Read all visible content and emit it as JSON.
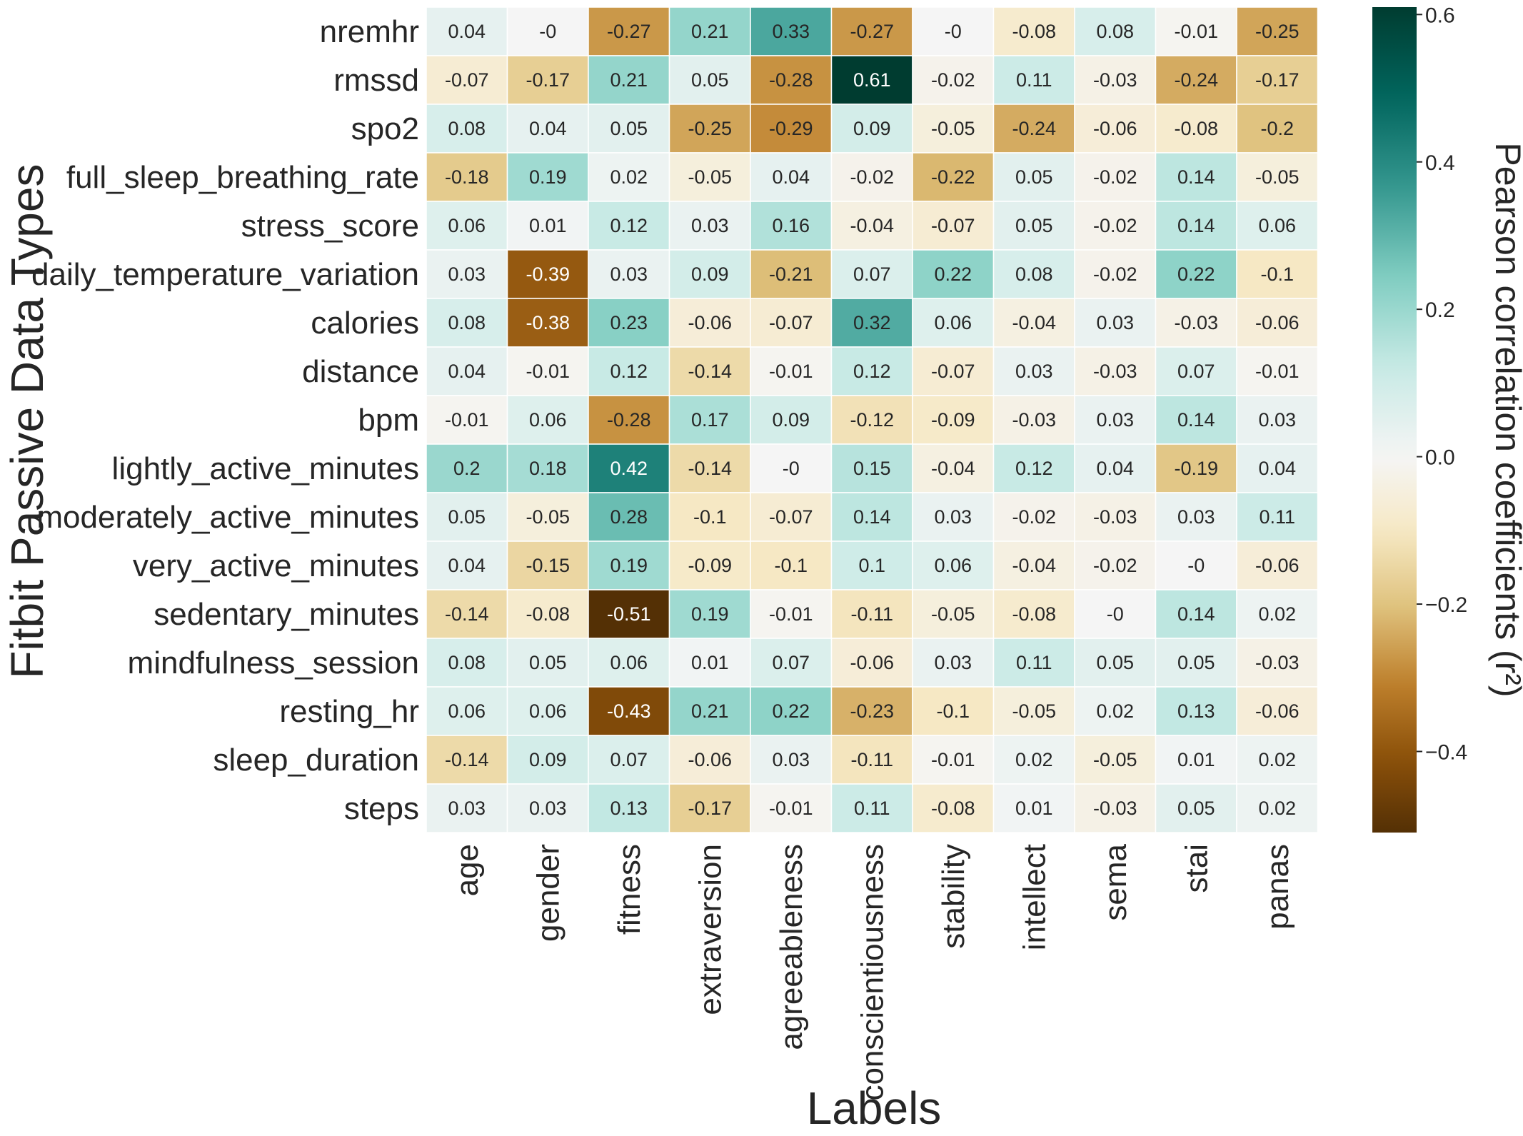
{
  "chart_data": {
    "type": "heatmap",
    "title": "",
    "xlabel": "Labels",
    "ylabel": "Fitbit Passive Data Types",
    "colorbar_label": "Pearson correlation coefficients (r²)",
    "colorbar_ticks": [
      "0.6",
      "0.4",
      "0.2",
      "0.0",
      "−0.2",
      "−0.4"
    ],
    "colorbar_tick_values": [
      0.6,
      0.4,
      0.2,
      0.0,
      -0.2,
      -0.4
    ],
    "vmin": -0.51,
    "vmax": 0.61,
    "colormap": "BrBG",
    "colormap_stops": [
      "#543005",
      "#8c510a",
      "#bf812d",
      "#dfc27d",
      "#f6e8c3",
      "#f5f5f5",
      "#c7eae5",
      "#80cdc1",
      "#35978f",
      "#01665e",
      "#003c30"
    ],
    "columns": [
      "age",
      "gender",
      "fitness",
      "extraversion",
      "agreeableness",
      "conscientiousness",
      "stability",
      "intellect",
      "sema",
      "stai",
      "panas"
    ],
    "rows": [
      "nremhr",
      "rmssd",
      "spo2",
      "full_sleep_breathing_rate",
      "stress_score",
      "daily_temperature_variation",
      "calories",
      "distance",
      "bpm",
      "lightly_active_minutes",
      "moderately_active_minutes",
      "very_active_minutes",
      "sedentary_minutes",
      "mindfulness_session",
      "resting_hr",
      "sleep_duration",
      "steps"
    ],
    "values": [
      [
        0.04,
        -0.0,
        -0.27,
        0.21,
        0.33,
        -0.27,
        -0.0,
        -0.08,
        0.08,
        -0.01,
        -0.25
      ],
      [
        -0.07,
        -0.17,
        0.21,
        0.05,
        -0.28,
        0.61,
        -0.02,
        0.11,
        -0.03,
        -0.24,
        -0.17
      ],
      [
        0.08,
        0.04,
        0.05,
        -0.25,
        -0.29,
        0.09,
        -0.05,
        -0.24,
        -0.06,
        -0.08,
        -0.2
      ],
      [
        -0.18,
        0.19,
        0.02,
        -0.05,
        0.04,
        -0.02,
        -0.22,
        0.05,
        -0.02,
        0.14,
        -0.05
      ],
      [
        0.06,
        0.01,
        0.12,
        0.03,
        0.16,
        -0.04,
        -0.07,
        0.05,
        -0.02,
        0.14,
        0.06
      ],
      [
        0.03,
        -0.39,
        0.03,
        0.09,
        -0.21,
        0.07,
        0.22,
        0.08,
        -0.02,
        0.22,
        -0.1
      ],
      [
        0.08,
        -0.38,
        0.23,
        -0.06,
        -0.07,
        0.32,
        0.06,
        -0.04,
        0.03,
        -0.03,
        -0.06
      ],
      [
        0.04,
        -0.01,
        0.12,
        -0.14,
        -0.01,
        0.12,
        -0.07,
        0.03,
        -0.03,
        0.07,
        -0.01
      ],
      [
        -0.01,
        0.06,
        -0.28,
        0.17,
        0.09,
        -0.12,
        -0.09,
        -0.03,
        0.03,
        0.14,
        0.03
      ],
      [
        0.2,
        0.18,
        0.42,
        -0.14,
        -0.0,
        0.15,
        -0.04,
        0.12,
        0.04,
        -0.19,
        0.04
      ],
      [
        0.05,
        -0.05,
        0.28,
        -0.1,
        -0.07,
        0.14,
        0.03,
        -0.02,
        -0.03,
        0.03,
        0.11
      ],
      [
        0.04,
        -0.15,
        0.19,
        -0.09,
        -0.1,
        0.1,
        0.06,
        -0.04,
        -0.02,
        -0.0,
        -0.06
      ],
      [
        -0.14,
        -0.08,
        -0.51,
        0.19,
        -0.01,
        -0.11,
        -0.05,
        -0.08,
        -0.0,
        0.14,
        0.02
      ],
      [
        0.08,
        0.05,
        0.06,
        0.01,
        0.07,
        -0.06,
        0.03,
        0.11,
        0.05,
        0.05,
        -0.03
      ],
      [
        0.06,
        0.06,
        -0.43,
        0.21,
        0.22,
        -0.23,
        -0.1,
        -0.05,
        0.02,
        0.13,
        -0.06
      ],
      [
        -0.14,
        0.09,
        0.07,
        -0.06,
        0.03,
        -0.11,
        -0.01,
        0.02,
        -0.05,
        0.01,
        0.02
      ],
      [
        0.03,
        0.03,
        0.13,
        -0.17,
        -0.01,
        0.11,
        -0.08,
        0.01,
        -0.03,
        0.05,
        0.02
      ]
    ],
    "value_labels": [
      [
        "0.04",
        "-0",
        "-0.27",
        "0.21",
        "0.33",
        "-0.27",
        "-0",
        "-0.08",
        "0.08",
        "-0.01",
        "-0.25"
      ],
      [
        "-0.07",
        "-0.17",
        "0.21",
        "0.05",
        "-0.28",
        "0.61",
        "-0.02",
        "0.11",
        "-0.03",
        "-0.24",
        "-0.17"
      ],
      [
        "0.08",
        "0.04",
        "0.05",
        "-0.25",
        "-0.29",
        "0.09",
        "-0.05",
        "-0.24",
        "-0.06",
        "-0.08",
        "-0.2"
      ],
      [
        "-0.18",
        "0.19",
        "0.02",
        "-0.05",
        "0.04",
        "-0.02",
        "-0.22",
        "0.05",
        "-0.02",
        "0.14",
        "-0.05"
      ],
      [
        "0.06",
        "0.01",
        "0.12",
        "0.03",
        "0.16",
        "-0.04",
        "-0.07",
        "0.05",
        "-0.02",
        "0.14",
        "0.06"
      ],
      [
        "0.03",
        "-0.39",
        "0.03",
        "0.09",
        "-0.21",
        "0.07",
        "0.22",
        "0.08",
        "-0.02",
        "0.22",
        "-0.1"
      ],
      [
        "0.08",
        "-0.38",
        "0.23",
        "-0.06",
        "-0.07",
        "0.32",
        "0.06",
        "-0.04",
        "0.03",
        "-0.03",
        "-0.06"
      ],
      [
        "0.04",
        "-0.01",
        "0.12",
        "-0.14",
        "-0.01",
        "0.12",
        "-0.07",
        "0.03",
        "-0.03",
        "0.07",
        "-0.01"
      ],
      [
        "-0.01",
        "0.06",
        "-0.28",
        "0.17",
        "0.09",
        "-0.12",
        "-0.09",
        "-0.03",
        "0.03",
        "0.14",
        "0.03"
      ],
      [
        "0.2",
        "0.18",
        "0.42",
        "-0.14",
        "-0",
        "0.15",
        "-0.04",
        "0.12",
        "0.04",
        "-0.19",
        "0.04"
      ],
      [
        "0.05",
        "-0.05",
        "0.28",
        "-0.1",
        "-0.07",
        "0.14",
        "0.03",
        "-0.02",
        "-0.03",
        "0.03",
        "0.11"
      ],
      [
        "0.04",
        "-0.15",
        "0.19",
        "-0.09",
        "-0.1",
        "0.1",
        "0.06",
        "-0.04",
        "-0.02",
        "-0",
        "-0.06"
      ],
      [
        "-0.14",
        "-0.08",
        "-0.51",
        "0.19",
        "-0.01",
        "-0.11",
        "-0.05",
        "-0.08",
        "-0",
        "0.14",
        "0.02"
      ],
      [
        "0.08",
        "0.05",
        "0.06",
        "0.01",
        "0.07",
        "-0.06",
        "0.03",
        "0.11",
        "0.05",
        "0.05",
        "-0.03"
      ],
      [
        "0.06",
        "0.06",
        "-0.43",
        "0.21",
        "0.22",
        "-0.23",
        "-0.1",
        "-0.05",
        "0.02",
        "0.13",
        "-0.06"
      ],
      [
        "-0.14",
        "0.09",
        "0.07",
        "-0.06",
        "0.03",
        "-0.11",
        "-0.01",
        "0.02",
        "-0.05",
        "0.01",
        "0.02"
      ],
      [
        "0.03",
        "0.03",
        "0.13",
        "-0.17",
        "-0.01",
        "0.11",
        "-0.08",
        "0.01",
        "-0.03",
        "0.05",
        "0.02"
      ]
    ],
    "grid": false,
    "legend": "colorbar-right"
  }
}
